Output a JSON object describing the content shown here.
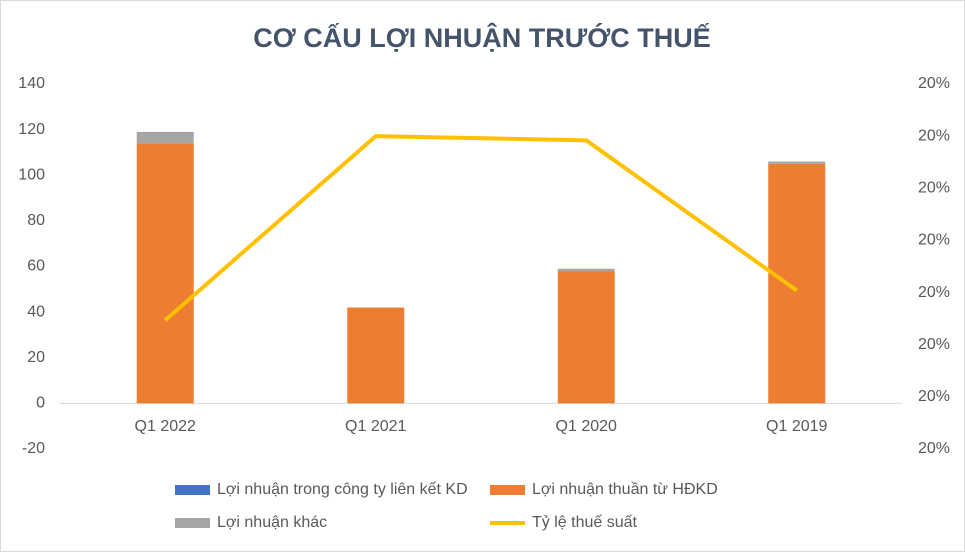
{
  "chart_data": {
    "type": "bar",
    "stacked": true,
    "title": "CƠ CẤU LỢI NHUẬN TRƯỚC THUẾ",
    "categories": [
      "Q1 2022",
      "Q1 2021",
      "Q1 2020",
      "Q1 2019"
    ],
    "series": [
      {
        "name": "Lợi nhuận trong công ty liên kết KD",
        "color": "#4472c4",
        "values": [
          0,
          0,
          0,
          0
        ]
      },
      {
        "name": "Lợi nhuận thuần từ HĐKD",
        "color": "#ed7d31",
        "values": [
          114,
          42,
          58,
          105
        ]
      },
      {
        "name": "Lợi nhuận khác",
        "color": "#a5a5a5",
        "values": [
          5,
          0,
          1,
          1
        ]
      },
      {
        "name": "Tỷ lệ thuế suất",
        "color": "#ffc000",
        "type": "line",
        "axis": "y2",
        "values": [
          19.897,
          20.25,
          20.242,
          19.954
        ]
      }
    ],
    "ylim": [
      -20,
      140
    ],
    "yticks": [
      -20,
      0,
      20,
      40,
      60,
      80,
      100,
      120,
      140
    ],
    "y2lim": [
      19.65,
      20.35
    ],
    "y2ticks": [
      {
        "value": 19.65,
        "label": "20%"
      },
      {
        "value": 19.75,
        "label": "20%"
      },
      {
        "value": 19.85,
        "label": "20%"
      },
      {
        "value": 19.95,
        "label": "20%"
      },
      {
        "value": 20.05,
        "label": "20%"
      },
      {
        "value": 20.15,
        "label": "20%"
      },
      {
        "value": 20.25,
        "label": "20%"
      },
      {
        "value": 20.35,
        "label": "20%"
      }
    ],
    "grid": false
  }
}
